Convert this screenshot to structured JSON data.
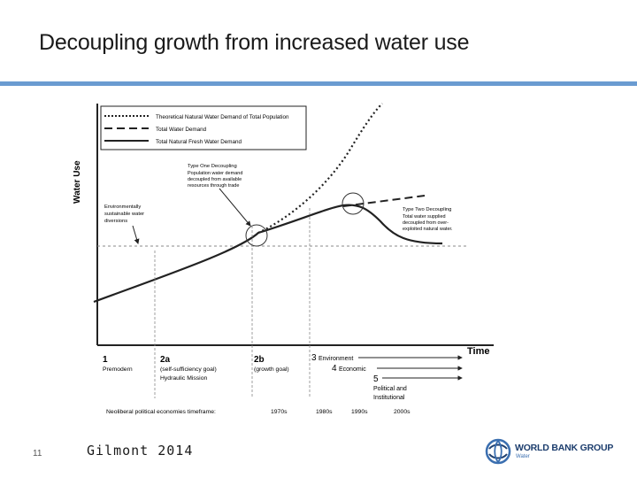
{
  "slide": {
    "title": "Decoupling growth from increased water use",
    "number": "11",
    "source": "Gilmont 2014"
  },
  "diagram": {
    "y_axis_label": "Water Use",
    "x_axis_label": "Time",
    "legend": [
      {
        "label": "Theoretical Natural Water Demand of Total Population",
        "style": "dotted"
      },
      {
        "label": "Total Water Demand",
        "style": "dashed"
      },
      {
        "label": "Total Natural Fresh Water Demand",
        "style": "solid"
      }
    ],
    "annotations": {
      "env_line1": "Environmentally",
      "env_line2": "sustainable water",
      "env_line3": "diversions",
      "type1_title": "Type One Decoupling",
      "type1_line1": "Population water demand",
      "type1_line2": "decoupled from available",
      "type1_line3": "resources through trade",
      "type2_title": "Type Two Decoupling",
      "type2_line1": "Total water supplied",
      "type2_line2": "decoupled from over-",
      "type2_line3": "exploited natural water."
    },
    "phases": {
      "p1_num": "1",
      "p1_label": "Premodern",
      "p2a_num": "2a",
      "p2a_line1": "(self-sufficiency goal)",
      "p2a_line2": "Hydraulic Mission",
      "p2b_num": "2b",
      "p2b_label": "(growth goal)",
      "p3_num": "3",
      "p3_label": "Environment",
      "p4_num": "4",
      "p4_label": "Economic",
      "p5_num": "5",
      "p5_line1": "Political and",
      "p5_line2": "Institutional"
    },
    "timeframe": {
      "label": "Neoliberal political economies timeframe:",
      "d1970": "1970s",
      "d1980": "1980s",
      "d1990": "1990s",
      "d2000": "2000s"
    }
  },
  "logo": {
    "name": "WORLD BANK GROUP",
    "sub": "Water"
  },
  "colors": {
    "accent_bar": "#6a9bd1",
    "logo_blue": "#1d3e6e",
    "logo_light": "#3b6fb0"
  }
}
